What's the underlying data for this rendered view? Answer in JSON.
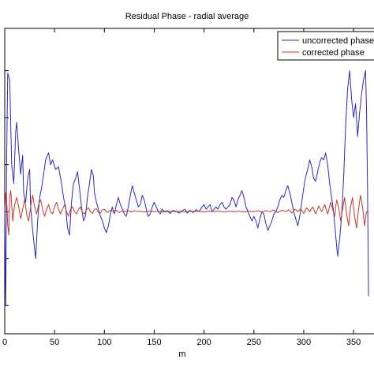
{
  "chart_data": {
    "type": "line",
    "title": "Residual Phase - radial average",
    "xlabel": "m",
    "ylabel": "",
    "xlim": [
      0,
      380
    ],
    "ylim": [
      -2.6,
      3.9
    ],
    "xticks": [
      0,
      50,
      100,
      150,
      200,
      250,
      300,
      350
    ],
    "xtick_labels": [
      "0",
      "50",
      "100",
      "150",
      "200",
      "250",
      "300",
      "350"
    ],
    "grid": false,
    "legend_position": "top-right",
    "series": [
      {
        "name": "uncorrected phase",
        "color": "#2b2bb5",
        "points": [
          [
            0,
            0.0
          ],
          [
            1,
            -2.0
          ],
          [
            2,
            1.2
          ],
          [
            3,
            2.95
          ],
          [
            5,
            2.8
          ],
          [
            7,
            1.0
          ],
          [
            9,
            0.6
          ],
          [
            11,
            1.7
          ],
          [
            12,
            1.9
          ],
          [
            14,
            1.3
          ],
          [
            16,
            0.8
          ],
          [
            18,
            1.2
          ],
          [
            19,
            0.4
          ],
          [
            21,
            0.2
          ],
          [
            23,
            0.7
          ],
          [
            25,
            0.9
          ],
          [
            26,
            0.1
          ],
          [
            28,
            -0.4
          ],
          [
            30,
            -0.8
          ],
          [
            31,
            -1.0
          ],
          [
            33,
            -0.2
          ],
          [
            35,
            0.3
          ],
          [
            37,
            0.5
          ],
          [
            39,
            0.8
          ],
          [
            41,
            1.1
          ],
          [
            44,
            1.25
          ],
          [
            46,
            1.0
          ],
          [
            48,
            1.1
          ],
          [
            51,
            0.9
          ],
          [
            54,
            0.95
          ],
          [
            57,
            0.6
          ],
          [
            59,
            0.3
          ],
          [
            61,
            0.1
          ],
          [
            63,
            -0.35
          ],
          [
            65,
            -0.5
          ],
          [
            67,
            0.2
          ],
          [
            69,
            0.6
          ],
          [
            71,
            0.7
          ],
          [
            73,
            0.85
          ],
          [
            75,
            0.5
          ],
          [
            77,
            0.1
          ],
          [
            79,
            -0.2
          ],
          [
            81,
            -0.1
          ],
          [
            83,
            0.3
          ],
          [
            85,
            0.6
          ],
          [
            87,
            0.9
          ],
          [
            89,
            0.75
          ],
          [
            90,
            0.4
          ],
          [
            92,
            0.2
          ],
          [
            94,
            0.05
          ],
          [
            96,
            -0.1
          ],
          [
            98,
            -0.2
          ],
          [
            100,
            -0.35
          ],
          [
            102,
            -0.45
          ],
          [
            104,
            -0.3
          ],
          [
            106,
            -0.05
          ],
          [
            108,
            0.1
          ],
          [
            110,
            -0.05
          ],
          [
            112,
            0.15
          ],
          [
            114,
            0.3
          ],
          [
            116,
            0.15
          ],
          [
            118,
            0.05
          ],
          [
            120,
            -0.05
          ],
          [
            122,
            -0.1
          ],
          [
            124,
            0.1
          ],
          [
            126,
            0.35
          ],
          [
            128,
            0.55
          ],
          [
            130,
            0.4
          ],
          [
            132,
            0.25
          ],
          [
            134,
            0.1
          ],
          [
            136,
            0.15
          ],
          [
            138,
            0.35
          ],
          [
            140,
            0.25
          ],
          [
            142,
            0.05
          ],
          [
            144,
            -0.1
          ],
          [
            146,
            -0.05
          ],
          [
            148,
            0.1
          ],
          [
            150,
            0.2
          ],
          [
            152,
            0.1
          ],
          [
            154,
            0.0
          ],
          [
            156,
            -0.05
          ],
          [
            158,
            0.05
          ],
          [
            160,
            0.0
          ],
          [
            163,
            0.02
          ],
          [
            166,
            -0.04
          ],
          [
            169,
            0.03
          ],
          [
            172,
            0.0
          ],
          [
            175,
            -0.03
          ],
          [
            178,
            0.02
          ],
          [
            181,
            0.05
          ],
          [
            183,
            -0.03
          ],
          [
            186,
            0.03
          ],
          [
            189,
            -0.02
          ],
          [
            192,
            0.04
          ],
          [
            195,
            0.0
          ],
          [
            198,
            0.1
          ],
          [
            200,
            0.15
          ],
          [
            202,
            0.05
          ],
          [
            204,
            0.1
          ],
          [
            206,
            0.15
          ],
          [
            208,
            0.0
          ],
          [
            210,
            0.05
          ],
          [
            212,
            0.1
          ],
          [
            214,
            0.05
          ],
          [
            216,
            0.15
          ],
          [
            218,
            0.2
          ],
          [
            220,
            0.1
          ],
          [
            222,
            0.05
          ],
          [
            224,
            0.1
          ],
          [
            226,
            0.15
          ],
          [
            228,
            0.3
          ],
          [
            230,
            0.25
          ],
          [
            232,
            0.1
          ],
          [
            234,
            0.25
          ],
          [
            236,
            0.35
          ],
          [
            238,
            0.45
          ],
          [
            240,
            0.3
          ],
          [
            242,
            0.1
          ],
          [
            244,
            0.0
          ],
          [
            246,
            -0.1
          ],
          [
            248,
            -0.2
          ],
          [
            250,
            -0.1
          ],
          [
            252,
            -0.2
          ],
          [
            254,
            -0.35
          ],
          [
            256,
            -0.15
          ],
          [
            258,
            0.0
          ],
          [
            260,
            -0.05
          ],
          [
            262,
            -0.25
          ],
          [
            264,
            -0.4
          ],
          [
            266,
            -0.3
          ],
          [
            268,
            -0.2
          ],
          [
            270,
            -0.05
          ],
          [
            272,
            0.0
          ],
          [
            274,
            0.1
          ],
          [
            276,
            0.25
          ],
          [
            278,
            0.35
          ],
          [
            280,
            0.3
          ],
          [
            282,
            0.45
          ],
          [
            284,
            0.55
          ],
          [
            286,
            0.4
          ],
          [
            288,
            0.2
          ],
          [
            290,
            0.0
          ],
          [
            292,
            -0.15
          ],
          [
            294,
            -0.3
          ],
          [
            296,
            -0.1
          ],
          [
            298,
            0.2
          ],
          [
            300,
            0.5
          ],
          [
            302,
            0.75
          ],
          [
            304,
            0.9
          ],
          [
            306,
            1.1
          ],
          [
            308,
            0.95
          ],
          [
            310,
            0.7
          ],
          [
            312,
            0.65
          ],
          [
            314,
            0.85
          ],
          [
            316,
            1.05
          ],
          [
            318,
            1.15
          ],
          [
            320,
            1.1
          ],
          [
            322,
            1.25
          ],
          [
            324,
            1.0
          ],
          [
            326,
            0.6
          ],
          [
            328,
            0.3
          ],
          [
            330,
            0.0
          ],
          [
            332,
            -0.5
          ],
          [
            334,
            -0.95
          ],
          [
            336,
            -0.6
          ],
          [
            338,
            -0.1
          ],
          [
            340,
            0.7
          ],
          [
            342,
            1.8
          ],
          [
            344,
            2.6
          ],
          [
            346,
            3.0
          ],
          [
            348,
            2.4
          ],
          [
            350,
            2.0
          ],
          [
            352,
            2.3
          ],
          [
            354,
            1.6
          ],
          [
            356,
            2.1
          ],
          [
            358,
            2.5
          ],
          [
            360,
            2.8
          ],
          [
            362,
            3.0
          ],
          [
            363,
            2.2
          ],
          [
            364,
            0.5
          ],
          [
            365,
            -1.8
          ]
        ]
      },
      {
        "name": "corrected phase",
        "color": "#c0392b",
        "points": [
          [
            0,
            0.0
          ],
          [
            1,
            0.4
          ],
          [
            2,
            0.25
          ],
          [
            3,
            -0.3
          ],
          [
            4,
            -0.5
          ],
          [
            5,
            0.3
          ],
          [
            6,
            0.45
          ],
          [
            7,
            0.15
          ],
          [
            8,
            -0.2
          ],
          [
            10,
            0.15
          ],
          [
            12,
            0.3
          ],
          [
            14,
            0.1
          ],
          [
            16,
            -0.15
          ],
          [
            18,
            0.05
          ],
          [
            20,
            0.25
          ],
          [
            22,
            -0.05
          ],
          [
            24,
            -0.2
          ],
          [
            26,
            0.1
          ],
          [
            28,
            0.35
          ],
          [
            30,
            0.1
          ],
          [
            32,
            -0.05
          ],
          [
            34,
            0.15
          ],
          [
            36,
            0.25
          ],
          [
            38,
            0.05
          ],
          [
            40,
            -0.1
          ],
          [
            42,
            0.05
          ],
          [
            44,
            0.15
          ],
          [
            46,
            0.0
          ],
          [
            48,
            -0.05
          ],
          [
            50,
            0.1
          ],
          [
            52,
            0.2
          ],
          [
            54,
            0.05
          ],
          [
            56,
            -0.05
          ],
          [
            58,
            0.05
          ],
          [
            60,
            0.15
          ],
          [
            62,
            0.0
          ],
          [
            64,
            -0.1
          ],
          [
            66,
            0.05
          ],
          [
            68,
            0.1
          ],
          [
            70,
            0.0
          ],
          [
            72,
            -0.05
          ],
          [
            74,
            0.05
          ],
          [
            76,
            0.1
          ],
          [
            78,
            -0.02
          ],
          [
            80,
            -0.05
          ],
          [
            82,
            0.04
          ],
          [
            84,
            0.08
          ],
          [
            86,
            0.0
          ],
          [
            88,
            -0.04
          ],
          [
            90,
            0.05
          ],
          [
            92,
            0.06
          ],
          [
            94,
            -0.02
          ],
          [
            96,
            -0.03
          ],
          [
            98,
            0.04
          ],
          [
            100,
            0.05
          ],
          [
            103,
            -0.02
          ],
          [
            106,
            0.03
          ],
          [
            109,
            0.0
          ],
          [
            112,
            0.03
          ],
          [
            115,
            -0.02
          ],
          [
            118,
            0.02
          ],
          [
            121,
            0.0
          ],
          [
            124,
            0.02
          ],
          [
            127,
            -0.01
          ],
          [
            130,
            0.02
          ],
          [
            133,
            0.0
          ],
          [
            136,
            0.01
          ],
          [
            140,
            -0.01
          ],
          [
            145,
            0.01
          ],
          [
            150,
            0.0
          ],
          [
            155,
            0.01
          ],
          [
            160,
            -0.01
          ],
          [
            165,
            0.01
          ],
          [
            170,
            0.0
          ],
          [
            175,
            0.01
          ],
          [
            180,
            -0.01
          ],
          [
            185,
            0.01
          ],
          [
            190,
            0.0
          ],
          [
            195,
            0.01
          ],
          [
            200,
            -0.01
          ],
          [
            205,
            0.01
          ],
          [
            210,
            0.0
          ],
          [
            215,
            0.01
          ],
          [
            220,
            -0.01
          ],
          [
            225,
            0.01
          ],
          [
            230,
            0.0
          ],
          [
            235,
            0.01
          ],
          [
            240,
            -0.01
          ],
          [
            245,
            0.01
          ],
          [
            250,
            0.0
          ],
          [
            254,
            0.02
          ],
          [
            258,
            -0.01
          ],
          [
            262,
            0.02
          ],
          [
            266,
            0.0
          ],
          [
            270,
            0.03
          ],
          [
            274,
            -0.02
          ],
          [
            278,
            0.03
          ],
          [
            282,
            0.0
          ],
          [
            285,
            0.04
          ],
          [
            288,
            -0.03
          ],
          [
            291,
            0.05
          ],
          [
            294,
            0.0
          ],
          [
            297,
            0.06
          ],
          [
            300,
            -0.04
          ],
          [
            303,
            0.08
          ],
          [
            306,
            0.0
          ],
          [
            309,
            0.1
          ],
          [
            312,
            -0.05
          ],
          [
            315,
            0.12
          ],
          [
            318,
            0.0
          ],
          [
            321,
            0.15
          ],
          [
            324,
            -0.05
          ],
          [
            327,
            0.2
          ],
          [
            329,
            0.05
          ],
          [
            331,
            -0.1
          ],
          [
            333,
            0.25
          ],
          [
            335,
            0.1
          ],
          [
            337,
            -0.2
          ],
          [
            339,
            0.05
          ],
          [
            341,
            0.3
          ],
          [
            343,
            -0.05
          ],
          [
            345,
            -0.3
          ],
          [
            347,
            0.1
          ],
          [
            349,
            0.3
          ],
          [
            351,
            -0.1
          ],
          [
            353,
            -0.35
          ],
          [
            355,
            0.05
          ],
          [
            357,
            0.35
          ],
          [
            359,
            0.1
          ],
          [
            361,
            -0.3
          ],
          [
            363,
            0.0
          ],
          [
            365,
            0.0
          ]
        ]
      }
    ]
  }
}
